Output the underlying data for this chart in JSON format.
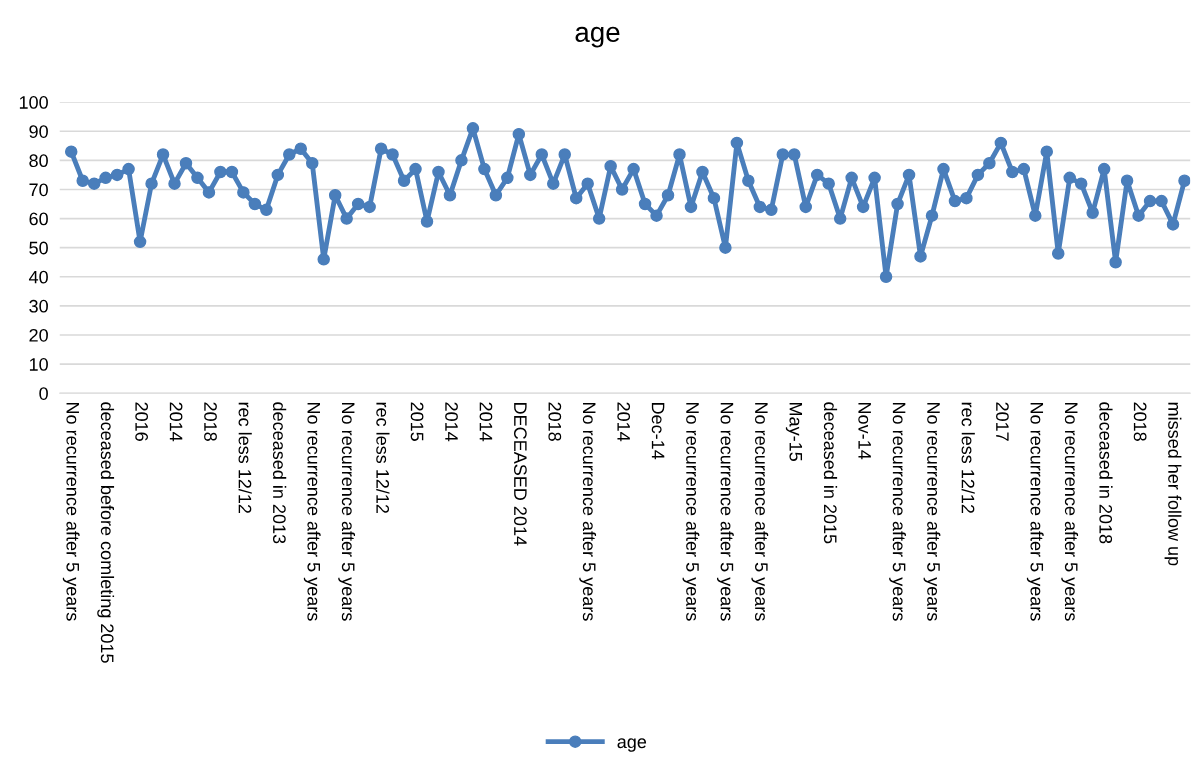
{
  "chart_data": {
    "type": "line",
    "title": "age",
    "categories": [
      "No recurrence after 5 years",
      null,
      null,
      "deceased before comleting 2015",
      null,
      null,
      "2016",
      null,
      null,
      "2014",
      null,
      null,
      "2018",
      null,
      null,
      "rec less 12/12",
      null,
      null,
      "deceased in 2013",
      null,
      null,
      "No recurrence after 5 years",
      null,
      null,
      "No recurrence after 5 years",
      null,
      null,
      "rec less 12/12",
      null,
      null,
      "2015",
      null,
      null,
      "2014",
      null,
      null,
      "2014",
      null,
      null,
      "DECEASED 2014",
      null,
      null,
      "2018",
      null,
      null,
      "No recurrence after 5 years",
      null,
      null,
      "2014",
      null,
      null,
      "Dec-14",
      null,
      null,
      "No recurrence after 5 years",
      null,
      null,
      "No recurrence after 5 years",
      null,
      null,
      "No recurrence after 5 years",
      null,
      null,
      "May-15",
      null,
      null,
      "deceased in 2015",
      null,
      null,
      "Nov-14",
      null,
      null,
      "No recurrence after 5 years",
      null,
      null,
      "No recurrence after 5 years",
      null,
      null,
      "rec less 12/12",
      null,
      null,
      "2017",
      null,
      null,
      "No recurrence after 5 years",
      null,
      null,
      "No recurrence after 5 years",
      null,
      null,
      "deceased in 2018",
      null,
      null,
      "2018",
      null,
      null,
      "missed her follow up",
      null
    ],
    "series": [
      {
        "name": "age",
        "color": "#4a7ebb",
        "values": [
          83,
          73,
          72,
          74,
          75,
          77,
          52,
          72,
          82,
          72,
          79,
          74,
          69,
          76,
          76,
          69,
          65,
          63,
          75,
          82,
          84,
          79,
          46,
          68,
          60,
          65,
          64,
          84,
          82,
          73,
          77,
          59,
          76,
          68,
          80,
          91,
          77,
          68,
          74,
          89,
          75,
          82,
          72,
          82,
          67,
          72,
          60,
          78,
          70,
          77,
          65,
          61,
          68,
          82,
          64,
          76,
          67,
          50,
          86,
          73,
          64,
          63,
          82,
          82,
          64,
          75,
          72,
          60,
          74,
          64,
          74,
          40,
          65,
          75,
          47,
          61,
          77,
          66,
          67,
          75,
          79,
          86,
          76,
          77,
          61,
          83,
          48,
          74,
          72,
          62,
          77,
          45,
          73,
          61,
          66,
          66,
          58,
          73
        ]
      }
    ],
    "ylim": [
      0,
      100
    ],
    "yticks": [
      0,
      10,
      20,
      30,
      40,
      50,
      60,
      70,
      80,
      90,
      100
    ],
    "grid": "y",
    "legend": "bottom",
    "marker": "circle",
    "line_style": "solid"
  }
}
